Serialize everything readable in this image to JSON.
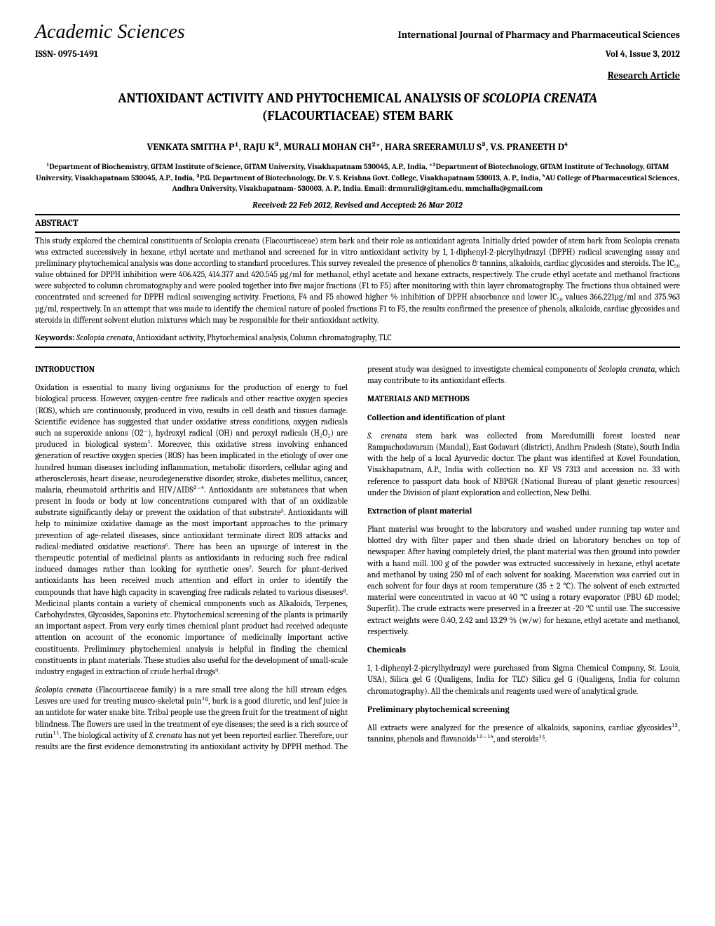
{
  "header": {
    "publisher": "Academic Sciences",
    "journal": "International Journal of Pharmacy and Pharmaceutical Sciences",
    "issn": "ISSN- 0975-1491",
    "volume": "Vol 4, Issue 3, 2012",
    "article_type": "Research Article"
  },
  "title_line1": "ANTIOXIDANT ACTIVITY AND PHYTOCHEMICAL ANALYSIS OF ",
  "title_italic": "SCOLOPIA CRENATA",
  "title_line2": "(FLACOURTIACEAE) STEM BARK",
  "authors": "VENKATA SMITHA P¹, RAJU K³, MURALI MOHAN CH²*, HARA SREERAMULU S³, V.S. PRANEETH D⁴",
  "affiliations": "¹Department of Biochemistry, GITAM Institute of Science, GITAM University, Visakhapatnam 530045, A.P., India, *²Department of Biotechnology, GITAM Institute of Technology, GITAM University, Visakhapatnam 530045, A.P., India, ³P.G. Department of Biotechnology, Dr. V. S. Krishna Govt. College, Visakhapatnam 530013, A. P., India, ⁴AU College of Pharmaceutical Sciences, Andhra University, Visakhapatnam- 530003, A. P., India. Email: drmurali@gitam.edu, mmchalla@gmail.com",
  "dates": "Received: 22 Feb 2012, Revised and Accepted: 26 Mar 2012",
  "abstract": {
    "heading": "ABSTRACT",
    "text": "This study explored the chemical constituents of Scolopia crenata (Flacourtiaceae) stem bark and their role as antioxidant agents. Initially dried powder of stem bark from Scolopia crenata was extracted successively in hexane, ethyl acetate and methanol and screened for in vitro antioxidant activity by 1, 1-diphenyl-2-picrylhydrazyl (DPPH) radical scavenging assay and preliminary phytochemical analysis was done according to standard procedures. This survey revealed the presence of phenolics & tannins, alkaloids, cardiac glycosides and steroids. The IC₅₀ value obtained for DPPH inhibition were 406.425, 414.377 and 420.545 µg/ml for methanol, ethyl acetate and hexane extracts, respectively. The crude ethyl acetate and methanol fractions were subjected to column chromatography and were pooled together into five major fractions (F1 to F5) after monitoring with thin layer chromatography. The fractions thus obtained were concentrated and screened for DPPH radical scavenging activity. Fractions, F4 and F5 showed higher % inhibition of DPPH absorbance and lower IC₅₀ values 366.221µg/ml and 375.963 µg/ml, respectively. In an attempt that was made to identify the chemical nature of pooled fractions F1 to F5, the results confirmed the presence of phenols, alkaloids, cardiac glycosides and steroids in different solvent elution mixtures which may be responsible for their antioxidant activity."
  },
  "keywords": {
    "label": "Keywords: ",
    "genus": "Scolopia crenata",
    "rest": ", Antioxidant activity, Phytochemical analysis, Column chromatography, TLC"
  },
  "body": {
    "intro_heading": "INTRODUCTION",
    "intro_p1": "Oxidation is essential to many living organisms for the production of energy to fuel biological process. However, oxygen-centre free radicals and other reactive oxygen species (ROS), which are continuously, produced in vivo, results in cell death and tissues damage. Scientific evidence has suggested that under oxidative stress conditions, oxygen radicals such as superoxide anions (O2⁻), hydroxyl radical (OH) and peroxyl radicals (H₂O₂) are produced in biological system¹. Moreover, this oxidative stress involving enhanced generation of reactive oxygen species (ROS) has been implicated in the etiology of over one hundred human diseases including inflammation, metabolic disorders, cellular aging and atherosclerosis, heart disease, neurodegenerative disorder, stroke, diabetes mellitus, cancer, malaria, rheumatoid arthritis and HIV/AIDS²⁻⁴. Antioxidants are substances that when present in foods or body at low concentrations compared with that of an oxidizable substrate significantly delay or prevent the oxidation of that substrate⁵. Antioxidants will help to minimize oxidative damage as the most important approaches to the primary prevention of age-related diseases, since antioxidant terminate direct ROS attacks and radical-mediated oxidative reactions⁶. There has been an upsurge of interest in the therapeutic potential of medicinal plants as antioxidants in reducing such free radical induced damages rather than looking for synthetic ones⁷. Search for plant-derived antioxidants has been received much attention and effort in order to identify the compounds that have high capacity in scavenging free radicals related to various diseases⁸. Medicinal plants contain a variety of chemical components such as Alkaloids, Terpenes, Carbohydrates, Glycosides, Saponins etc. Phytochemical screening of the plants is primarily an important aspect. From very early times chemical plant product had received adequate attention on account of the economic importance of medicinally important active constituents. Preliminary phytochemical analysis is helpful in finding the chemical constituents in plant materials. These studies also useful for the development of small-scale industry engaged in extraction of crude herbal drugs⁹.",
    "intro_p2a": "Scolopia crenata",
    "intro_p2b": " (Flacourtiaceae family) is a rare small tree along the hill stream edges. Leaves are used for treating musco-skeletal pain¹⁰, bark is a good diuretic, and leaf juice is an antidote for water snake bite. Tribal people use the green fruit for the treatment of night blindness. The flowers are used in the treatment of eye diseases; the seed is a rich source of rutin¹¹. The biological activity of ",
    "intro_p3a": "S. crenata",
    "intro_p3b": " has not yet been reported earlier. Therefore, our results are the first evidence demonstrating its antioxidant activity by DPPH method. The present study was designed to investigate chemical components of ",
    "intro_p3c": "Scolopia crenata",
    "intro_p3d": ", which may contribute to its antioxidant effects.",
    "mm_heading": "MATERIALS AND METHODS",
    "collect_heading": "Collection and identification of plant",
    "collect_p_a": "S. crenata",
    "collect_p_b": " stem bark was collected from Maredumilli forest located near Rampachodavaram (Mandal), East Godavari (district), Andhra Pradesh (State), South India with the help of a local Ayurvedic doctor. The plant was identified at Kovel Foundation, Visakhapatnam, A.P., India with collection no. KF VS 7313 and accession no. 33 with reference to passport data book of NBPGR (National Bureau of plant genetic resources) under the Division of plant exploration and collection, New Delhi.",
    "extract_heading": "Extraction of plant material",
    "extract_p": "Plant material was brought to the laboratory and washed under running tap water and blotted dry with filter paper and then shade dried on laboratory benches on top of newspaper. After having completely dried, the plant material was then ground into powder with a hand mill. 100 g of the powder was extracted successively in hexane, ethyl acetate and methanol by using 250 ml of each solvent for soaking. Maceration was carried out in each solvent for four days at room temperature (35 ± 2 °C). The solvent of each extracted material were concentrated in vacuo at 40 °C using a rotary evaporator (PBU 6D model; Superfit). The crude extracts were preserved in a freezer at -20 °C until use. The successive extract weights were 0.40, 2.42 and 13.29 % (w/w) for hexane, ethyl acetate and methanol, respectively.",
    "chem_heading": "Chemicals",
    "chem_p": "1, 1-diphenyl-2-picrylhydrazyl were purchased from Sigma Chemical Company, St. Louis, USA), Silica gel G (Qualigens, India for TLC) Silica gel G (Qualigens, India for column chromatography). All the chemicals and reagents used were of analytical grade.",
    "prelim_heading": "Preliminary phytochemical screening",
    "prelim_p": "All extracts were analyzed for the presence of alkaloids, saponins, cardiac glycosides¹², tannins, phenols and flavanoids¹³⁻¹⁴, and steroids¹⁵."
  }
}
